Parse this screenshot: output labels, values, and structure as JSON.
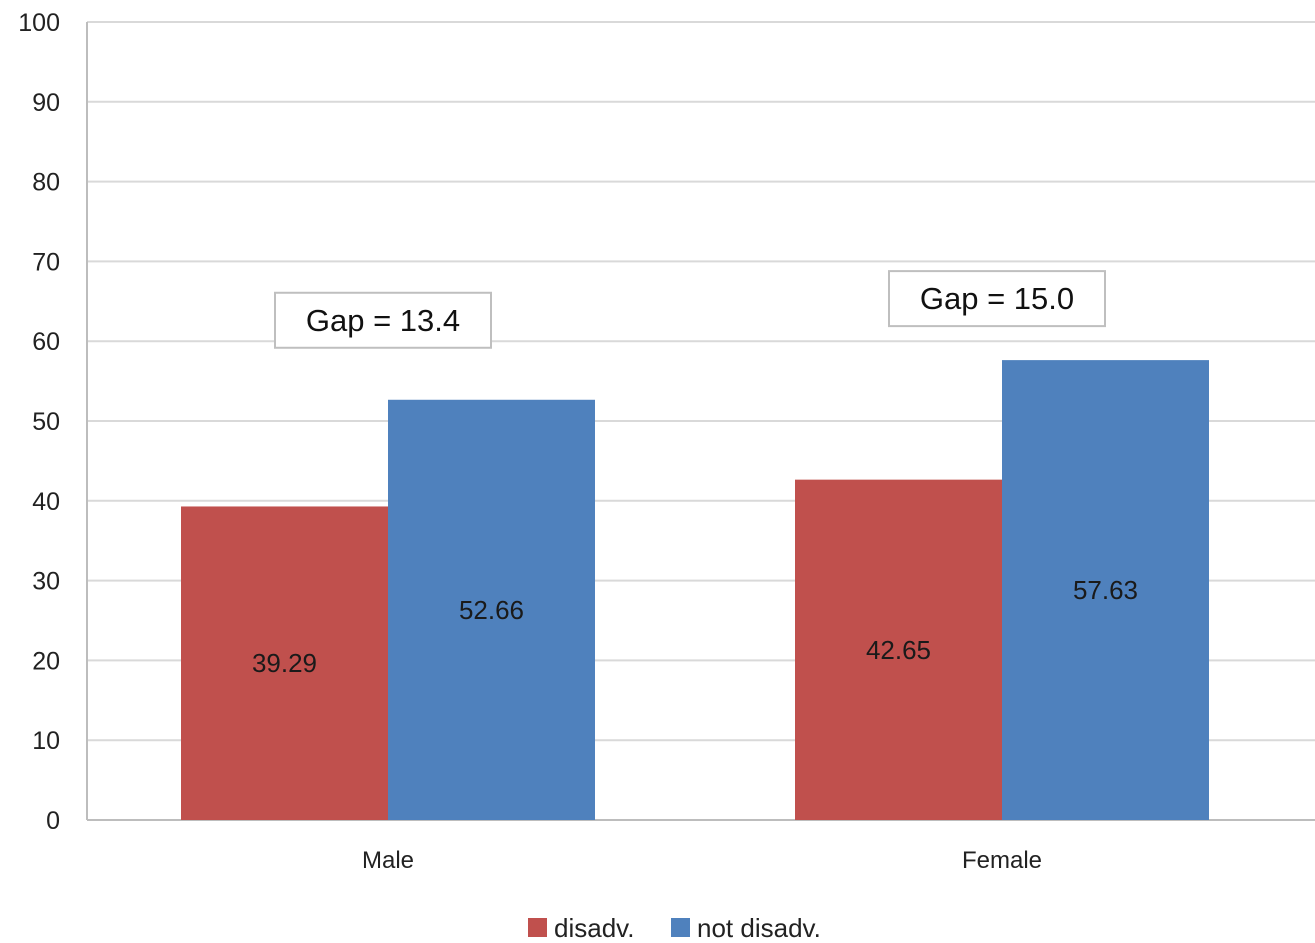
{
  "chart_data": {
    "type": "bar",
    "categories": [
      "Male",
      "Female"
    ],
    "series": [
      {
        "name": "disadv.",
        "color": "#c0504d",
        "values": [
          39.29,
          42.65
        ]
      },
      {
        "name": "not disadv.",
        "color": "#4f81bd",
        "values": [
          52.66,
          57.63
        ]
      }
    ],
    "data_labels": [
      [
        "39.29",
        "42.65"
      ],
      [
        "52.66",
        "57.63"
      ]
    ],
    "annotations": [
      "Gap = 13.4",
      "Gap = 15.0"
    ],
    "ylim": [
      0,
      100
    ],
    "yticks": [
      0,
      10,
      20,
      30,
      40,
      50,
      60,
      70,
      80,
      90,
      100
    ],
    "grid": true,
    "legend_position": "bottom",
    "title": "",
    "xlabel": "",
    "ylabel": ""
  }
}
